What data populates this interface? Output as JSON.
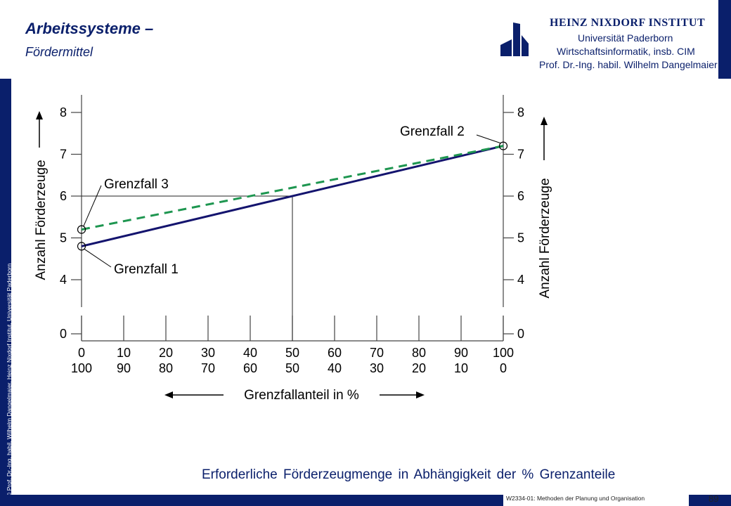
{
  "header": {
    "title": "Arbeitssysteme –",
    "subtitle": "Fördermittel"
  },
  "logo": {
    "name": "HEINZ NIXDORF INSTITUT",
    "line1": "Universität Paderborn",
    "line2": "Wirtschaftsinformatik, insb. CIM",
    "line3": "Prof. Dr.-Ing. habil. Wilhelm Dangelmaier"
  },
  "side_copyright": "© Prof. Dr.-Ing. habil. Wilhelm Dangelmaier, Heinz Nixdorf Institut, Universität Paderborn",
  "footer": {
    "course": "W2334-01: Methoden der Planung und Organisation",
    "page": "89"
  },
  "caption": "Erforderliche  Förderzeugmenge  in  Abhängigkeit  der  %  Grenzanteile",
  "colors": {
    "brand_blue": "#0a1f6b",
    "solid_line": "#14146e",
    "dashed_line": "#1e9650"
  },
  "chart_data": {
    "type": "line",
    "x_ticks_top": [
      "0",
      "10",
      "20",
      "30",
      "40",
      "50",
      "60",
      "70",
      "80",
      "90",
      "100"
    ],
    "x_ticks_bottom": [
      "100",
      "90",
      "80",
      "70",
      "60",
      "50",
      "40",
      "30",
      "20",
      "10",
      "0"
    ],
    "x_values": [
      0,
      10,
      20,
      30,
      40,
      50,
      60,
      70,
      80,
      90,
      100
    ],
    "xlabel": "Grenzfallanteil  in  %",
    "y_ticks": [
      "4",
      "5",
      "6",
      "7",
      "8"
    ],
    "y_zero": "0",
    "y_axis_break": true,
    "ylim": [
      3.5,
      8.5
    ],
    "ylabel_left": "Anzahl  Förderzeuge",
    "ylabel_right": "Anzahl  Förderzeuge",
    "series": [
      {
        "style": "solid",
        "x": [
          0,
          100
        ],
        "y": [
          4.8,
          7.2
        ]
      },
      {
        "style": "dashed",
        "x": [
          0,
          100
        ],
        "y": [
          5.2,
          7.2
        ]
      }
    ],
    "reference": {
      "x": 50,
      "y": 6.0
    },
    "annotations": [
      {
        "label": "Grenzfall  1",
        "x": 0,
        "y": 4.8
      },
      {
        "label": "Grenzfall  2",
        "x": 100,
        "y": 7.2
      },
      {
        "label": "Grenzfall  3",
        "x": 0,
        "y": 5.2
      }
    ],
    "grid": false
  }
}
